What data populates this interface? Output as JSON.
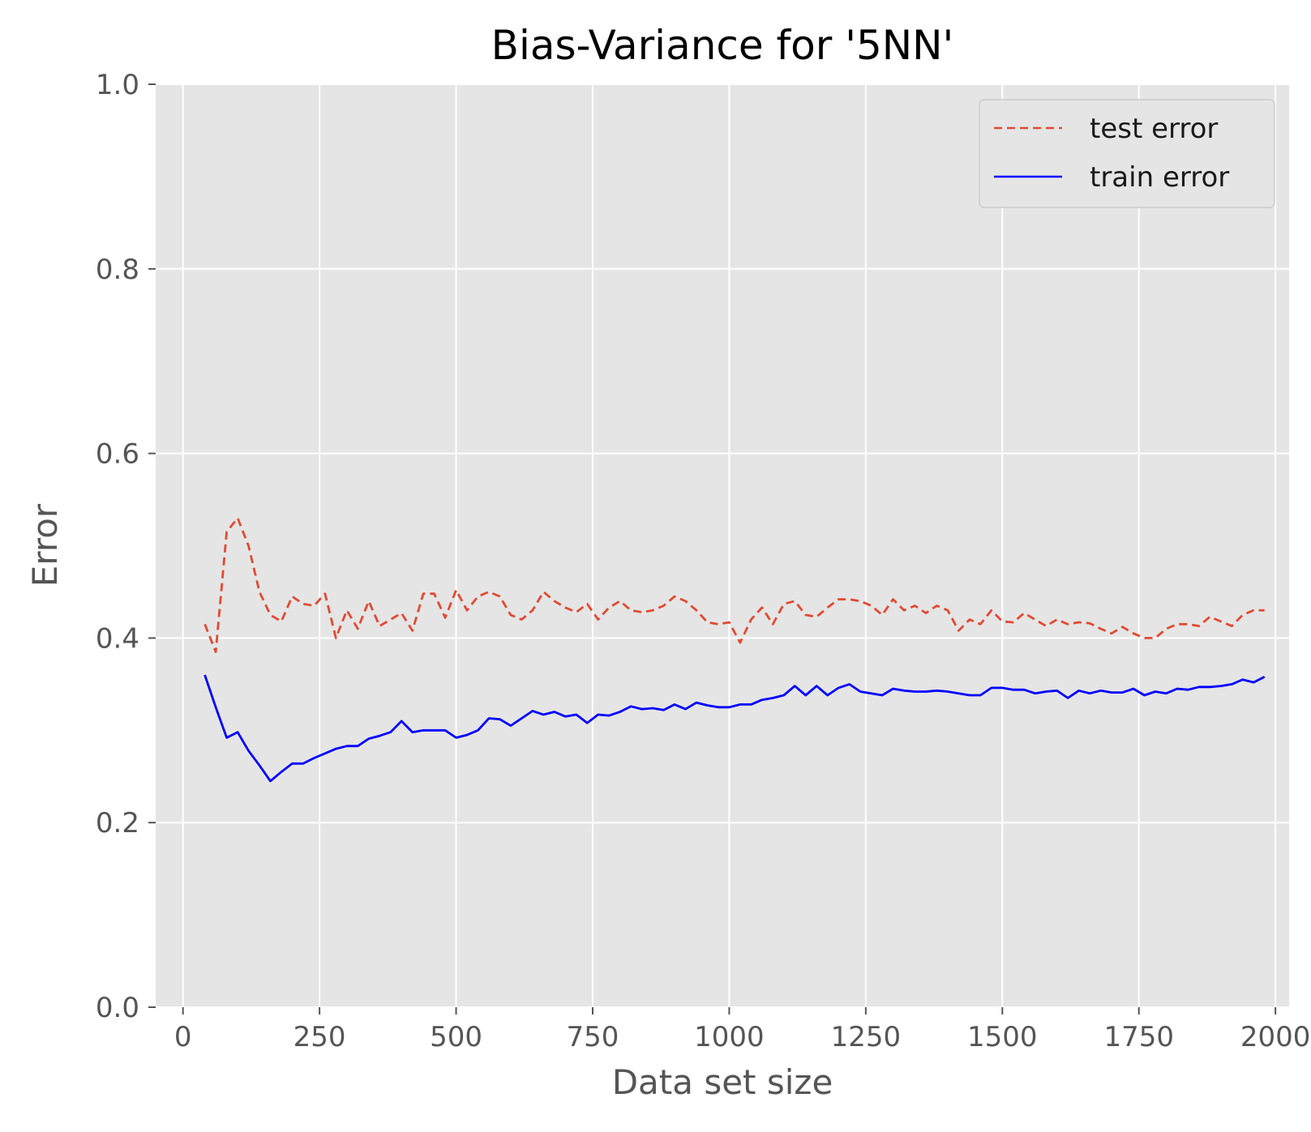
{
  "chart_data": {
    "type": "line",
    "title": "Bias-Variance for '5NN'",
    "xlabel": "Data set size",
    "ylabel": "Error",
    "xlim": [
      -50,
      2025
    ],
    "ylim": [
      0,
      1
    ],
    "xticks": [
      0,
      250,
      500,
      750,
      1000,
      1250,
      1500,
      1750,
      2000
    ],
    "yticks": [
      0.0,
      0.2,
      0.4,
      0.6,
      0.8,
      1.0
    ],
    "xtick_labels": [
      "0",
      "250",
      "500",
      "750",
      "1000",
      "1250",
      "1500",
      "1750",
      "2000"
    ],
    "ytick_labels": [
      "0.0",
      "0.2",
      "0.4",
      "0.6",
      "0.8",
      "1.0"
    ],
    "grid": true,
    "legend_position": "top-right",
    "x": [
      40,
      60,
      80,
      100,
      120,
      140,
      160,
      180,
      200,
      220,
      240,
      260,
      280,
      300,
      320,
      340,
      360,
      380,
      400,
      420,
      440,
      460,
      480,
      500,
      520,
      540,
      560,
      580,
      600,
      620,
      640,
      660,
      680,
      700,
      720,
      740,
      760,
      780,
      800,
      820,
      840,
      860,
      880,
      900,
      920,
      940,
      960,
      980,
      1000,
      1020,
      1040,
      1060,
      1080,
      1100,
      1120,
      1140,
      1160,
      1180,
      1200,
      1220,
      1240,
      1260,
      1280,
      1300,
      1320,
      1340,
      1360,
      1380,
      1400,
      1420,
      1440,
      1460,
      1480,
      1500,
      1520,
      1540,
      1560,
      1580,
      1600,
      1620,
      1640,
      1660,
      1680,
      1700,
      1720,
      1740,
      1760,
      1780,
      1800,
      1820,
      1840,
      1860,
      1880,
      1900,
      1920,
      1940,
      1960,
      1980
    ],
    "series": [
      {
        "name": "test error",
        "color": "#e24a33",
        "style": "dashed",
        "values": [
          0.415,
          0.385,
          0.515,
          0.53,
          0.5,
          0.45,
          0.425,
          0.418,
          0.445,
          0.437,
          0.435,
          0.448,
          0.4,
          0.43,
          0.41,
          0.44,
          0.413,
          0.42,
          0.427,
          0.408,
          0.448,
          0.448,
          0.422,
          0.452,
          0.43,
          0.445,
          0.45,
          0.445,
          0.425,
          0.42,
          0.43,
          0.45,
          0.44,
          0.433,
          0.428,
          0.437,
          0.42,
          0.433,
          0.44,
          0.43,
          0.428,
          0.43,
          0.435,
          0.445,
          0.44,
          0.43,
          0.417,
          0.415,
          0.417,
          0.395,
          0.42,
          0.433,
          0.415,
          0.437,
          0.44,
          0.425,
          0.423,
          0.433,
          0.442,
          0.442,
          0.44,
          0.435,
          0.425,
          0.442,
          0.43,
          0.435,
          0.427,
          0.435,
          0.43,
          0.408,
          0.42,
          0.415,
          0.43,
          0.418,
          0.417,
          0.427,
          0.42,
          0.413,
          0.42,
          0.415,
          0.417,
          0.416,
          0.41,
          0.405,
          0.412,
          0.405,
          0.4,
          0.4,
          0.41,
          0.415,
          0.415,
          0.413,
          0.423,
          0.418,
          0.413,
          0.425,
          0.43,
          0.43
        ]
      },
      {
        "name": "train error",
        "color": "#0000ff",
        "style": "solid",
        "values": [
          0.36,
          0.325,
          0.292,
          0.298,
          0.278,
          0.262,
          0.245,
          0.255,
          0.264,
          0.264,
          0.27,
          0.275,
          0.28,
          0.283,
          0.283,
          0.291,
          0.294,
          0.298,
          0.31,
          0.298,
          0.3,
          0.3,
          0.3,
          0.292,
          0.295,
          0.3,
          0.313,
          0.312,
          0.305,
          0.313,
          0.321,
          0.317,
          0.32,
          0.315,
          0.317,
          0.308,
          0.317,
          0.316,
          0.32,
          0.326,
          0.323,
          0.324,
          0.322,
          0.328,
          0.323,
          0.33,
          0.327,
          0.325,
          0.325,
          0.328,
          0.328,
          0.333,
          0.335,
          0.338,
          0.348,
          0.338,
          0.348,
          0.338,
          0.346,
          0.35,
          0.342,
          0.34,
          0.338,
          0.345,
          0.343,
          0.342,
          0.342,
          0.343,
          0.342,
          0.34,
          0.338,
          0.338,
          0.346,
          0.346,
          0.344,
          0.344,
          0.34,
          0.342,
          0.343,
          0.335,
          0.343,
          0.34,
          0.343,
          0.341,
          0.341,
          0.345,
          0.338,
          0.342,
          0.34,
          0.345,
          0.344,
          0.347,
          0.347,
          0.348,
          0.35,
          0.355,
          0.352,
          0.358
        ]
      }
    ]
  }
}
